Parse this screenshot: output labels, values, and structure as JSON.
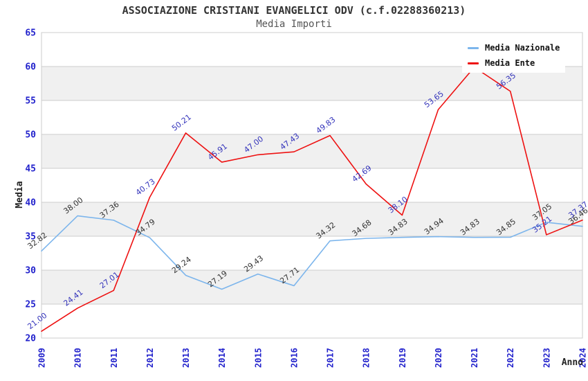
{
  "header": {
    "title": "ASSOCIAZIONE CRISTIANI EVANGELICI ODV (c.f.02288360213)",
    "subtitle": "Media Importi"
  },
  "legend": {
    "items": [
      {
        "label": "Media Nazionale",
        "color": "#7cb5ec"
      },
      {
        "label": "Media Ente",
        "color": "#ee1111"
      }
    ]
  },
  "axes": {
    "x_title": "Anno",
    "y_title": "Media"
  },
  "colors": {
    "tick_label": "#2222cc",
    "axis_title": "#222222",
    "grid_line": "#cccccc",
    "band_fill": "#f0f0f0",
    "plot_border": "#cccccc",
    "label_nazionale": "#333333",
    "label_ente": "#3333bb"
  },
  "chart_data": {
    "type": "line",
    "title": "ASSOCIAZIONE CRISTIANI EVANGELICI ODV (c.f.02288360213)",
    "subtitle": "Media Importi",
    "xlabel": "Anno",
    "ylabel": "Media",
    "x": [
      "2009",
      "2010",
      "2011",
      "2012",
      "2013",
      "2014",
      "2015",
      "2016",
      "2017",
      "2018",
      "2019",
      "2020",
      "2021",
      "2022",
      "2023",
      "2024"
    ],
    "ylim": [
      20,
      65
    ],
    "yticks": [
      20,
      25,
      30,
      35,
      40,
      45,
      50,
      55,
      60,
      65
    ],
    "grid": true,
    "alternating_bands": [
      [
        25,
        30
      ],
      [
        35,
        40
      ],
      [
        45,
        50
      ],
      [
        55,
        60
      ]
    ],
    "legend_position": "top-right",
    "series": [
      {
        "name": "Media Nazionale",
        "color": "#7cb5ec",
        "label_color": "#333333",
        "values": [
          32.82,
          38.0,
          37.36,
          34.79,
          29.24,
          27.19,
          29.43,
          27.71,
          34.32,
          34.68,
          34.83,
          34.94,
          34.83,
          34.85,
          37.05,
          36.46
        ],
        "labels": [
          "32.82",
          "38.00",
          "37.36",
          "34.79",
          "29.24",
          "27.19",
          "29.43",
          "27.71",
          "34.32",
          "34.68",
          "34.83",
          "34.94",
          "34.83",
          "34.85",
          "37.05",
          "36.46"
        ]
      },
      {
        "name": "Media Ente",
        "color": "#ee1111",
        "label_color": "#3333bb",
        "values": [
          21.0,
          24.41,
          27.01,
          40.73,
          50.21,
          45.91,
          47.0,
          47.43,
          49.83,
          42.69,
          38.1,
          53.65,
          59.9,
          56.35,
          35.21,
          37.37
        ],
        "labels": [
          "21.00",
          "24.41",
          "27.01",
          "40.73",
          "50.21",
          "45.91",
          "47.00",
          "47.43",
          "49.83",
          "42.69",
          "38.10",
          "53.65",
          null,
          "56.35",
          "35.21",
          "37.37"
        ],
        "note_label_hidden_at": "2021"
      }
    ]
  }
}
